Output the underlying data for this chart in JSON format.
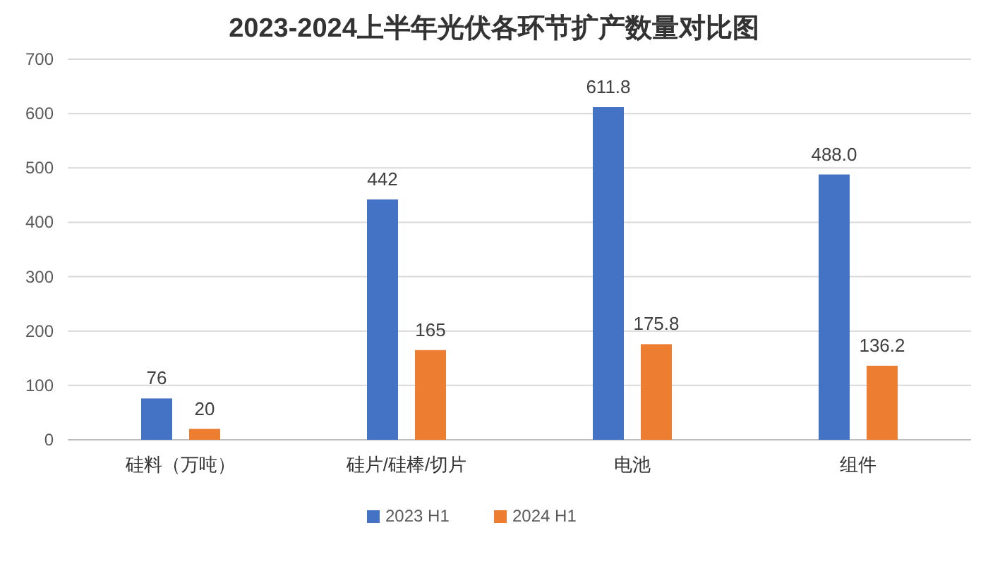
{
  "chart_data": {
    "type": "bar",
    "title": "2023-2024上半年光伏各环节扩产数量对比图",
    "categories": [
      "硅料（万吨）",
      "硅片/硅棒/切片",
      "电池",
      "组件"
    ],
    "series": [
      {
        "name": "2023 H1",
        "color": "#4472c4",
        "values": [
          76,
          442,
          611.8,
          488.0
        ],
        "value_labels": [
          "76",
          "442",
          "611.8",
          "488.0"
        ]
      },
      {
        "name": "2024 H1",
        "color": "#ed7d31",
        "values": [
          20,
          165,
          175.8,
          136.2
        ],
        "value_labels": [
          "20",
          "165",
          "175.8",
          "136.2"
        ]
      }
    ],
    "ylim": [
      0,
      700
    ],
    "yticks": [
      0,
      100,
      200,
      300,
      400,
      500,
      600,
      700
    ],
    "grid": "y",
    "legend": "bottom"
  }
}
